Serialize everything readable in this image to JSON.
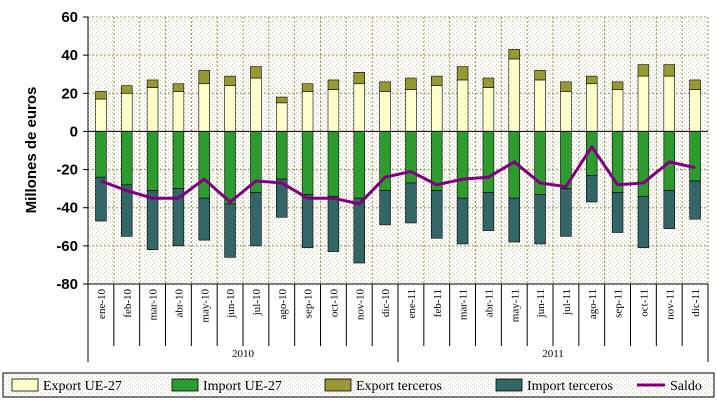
{
  "chart_data": {
    "type": "bar",
    "title": "",
    "xlabel": "",
    "ylabel": "Millones de euros",
    "ylim": [
      -80,
      60
    ],
    "yticks": [
      60,
      40,
      20,
      0,
      -20,
      -40,
      -60,
      -80
    ],
    "grid": true,
    "legend_position": "bottom",
    "categories": [
      "ene-10",
      "feb-10",
      "mar-10",
      "abr-10",
      "may-10",
      "jun-10",
      "jul-10",
      "ago-10",
      "sep-10",
      "oct-10",
      "nov-10",
      "dic-10",
      "ene-11",
      "feb-11",
      "mar-11",
      "abr-11",
      "may-11",
      "jun-11",
      "jul-11",
      "ago-11",
      "sep-11",
      "oct-11",
      "nov-11",
      "dic-11"
    ],
    "groups": [
      {
        "label": "2010",
        "count": 12
      },
      {
        "label": "2011",
        "count": 12
      }
    ],
    "series": [
      {
        "name": "Export UE-27",
        "kind": "bar",
        "color": "#ffffcc",
        "values": [
          17,
          20,
          23,
          21,
          25,
          24,
          28,
          15,
          21,
          22,
          25,
          21,
          22,
          24,
          27,
          23,
          38,
          27,
          21,
          25,
          22,
          29,
          29,
          22
        ]
      },
      {
        "name": "Import UE-27",
        "kind": "bar",
        "color": "#2e9b2e",
        "values": [
          -24,
          -28,
          -31,
          -30,
          -35,
          -38,
          -32,
          -25,
          -33,
          -34,
          -35,
          -31,
          -27,
          -31,
          -35,
          -32,
          -35,
          -33,
          -30,
          -23,
          -32,
          -34,
          -31,
          -26
        ]
      },
      {
        "name": "Export terceros",
        "kind": "bar",
        "color": "#999933",
        "values": [
          4,
          4,
          4,
          4,
          7,
          5,
          6,
          3,
          4,
          5,
          6,
          5,
          6,
          5,
          7,
          5,
          5,
          5,
          5,
          4,
          4,
          6,
          6,
          5
        ]
      },
      {
        "name": "Import terceros",
        "kind": "bar",
        "color": "#336666",
        "values": [
          -23,
          -27,
          -31,
          -30,
          -22,
          -28,
          -28,
          -20,
          -28,
          -29,
          -34,
          -18,
          -21,
          -25,
          -24,
          -20,
          -23,
          -26,
          -25,
          -14,
          -21,
          -27,
          -20,
          -20
        ]
      },
      {
        "name": "Saldo",
        "kind": "line",
        "color": "#800080",
        "values": [
          -26,
          -31,
          -35,
          -35,
          -25,
          -37,
          -26,
          -27,
          -35,
          -35,
          -38,
          -24,
          -21,
          -28,
          -25,
          -24,
          -16,
          -27,
          -29,
          -8,
          -28,
          -27,
          -16,
          -19
        ]
      }
    ]
  }
}
